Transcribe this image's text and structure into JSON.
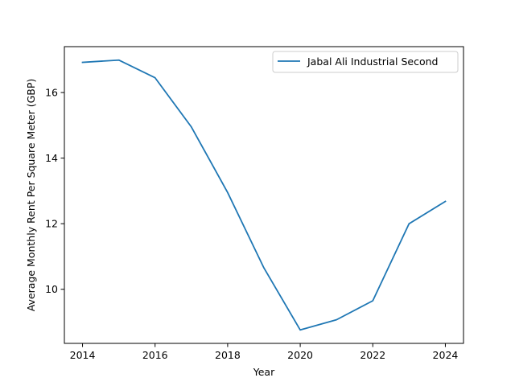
{
  "chart_data": {
    "type": "line",
    "title": "",
    "xlabel": "Year",
    "ylabel": "Average Monthly Rent Per Square Meter (GBP)",
    "x": [
      2014,
      2015,
      2016,
      2017,
      2018,
      2019,
      2020,
      2021,
      2022,
      2023,
      2024
    ],
    "series": [
      {
        "name": "Jabal Ali Industrial Second",
        "color": "#1f77b4",
        "values": [
          16.92,
          16.99,
          16.45,
          14.95,
          12.95,
          10.65,
          8.76,
          9.07,
          9.65,
          12.0,
          12.68
        ]
      }
    ],
    "xlim": [
      2013.5,
      2024.5
    ],
    "ylim": [
      8.35,
      17.4
    ],
    "xticks": [
      2014,
      2016,
      2018,
      2020,
      2022,
      2024
    ],
    "yticks": [
      10,
      12,
      14,
      16
    ],
    "grid": false,
    "legend_position": "top-right"
  }
}
